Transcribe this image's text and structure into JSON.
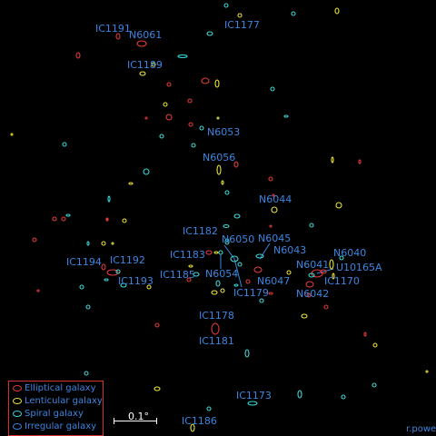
{
  "colors": {
    "elliptical": "#e23a3a",
    "lenticular": "#e8e23a",
    "spiral": "#3ad6d6",
    "irregular": "#3b86e0",
    "label": "#3b86e0",
    "background": "#000000"
  },
  "labels": [
    "IC1191",
    "N6061",
    "IC1177",
    "IC1189",
    "N6053",
    "N6056",
    "N6044",
    "IC1182",
    "N6050",
    "N6045",
    "IC1183",
    "N6043",
    "N6040",
    "IC1194",
    "IC1192",
    "IC1185",
    "N6054",
    "N6041",
    "U10165A",
    "IC1193",
    "N6047",
    "IC1170",
    "IC1179",
    "N6042",
    "IC1178",
    "IC1181",
    "IC1173",
    "IC1186"
  ],
  "legend": {
    "items": [
      {
        "type": "elliptical",
        "label": "Elliptical galaxy"
      },
      {
        "type": "lenticular",
        "label": "Lenticular galaxy"
      },
      {
        "type": "spiral",
        "label": "Spiral galaxy"
      },
      {
        "type": "irregular",
        "label": "Irregular galaxy"
      }
    ]
  },
  "scale": {
    "label": "0.1°"
  },
  "credit": "r.powell"
}
